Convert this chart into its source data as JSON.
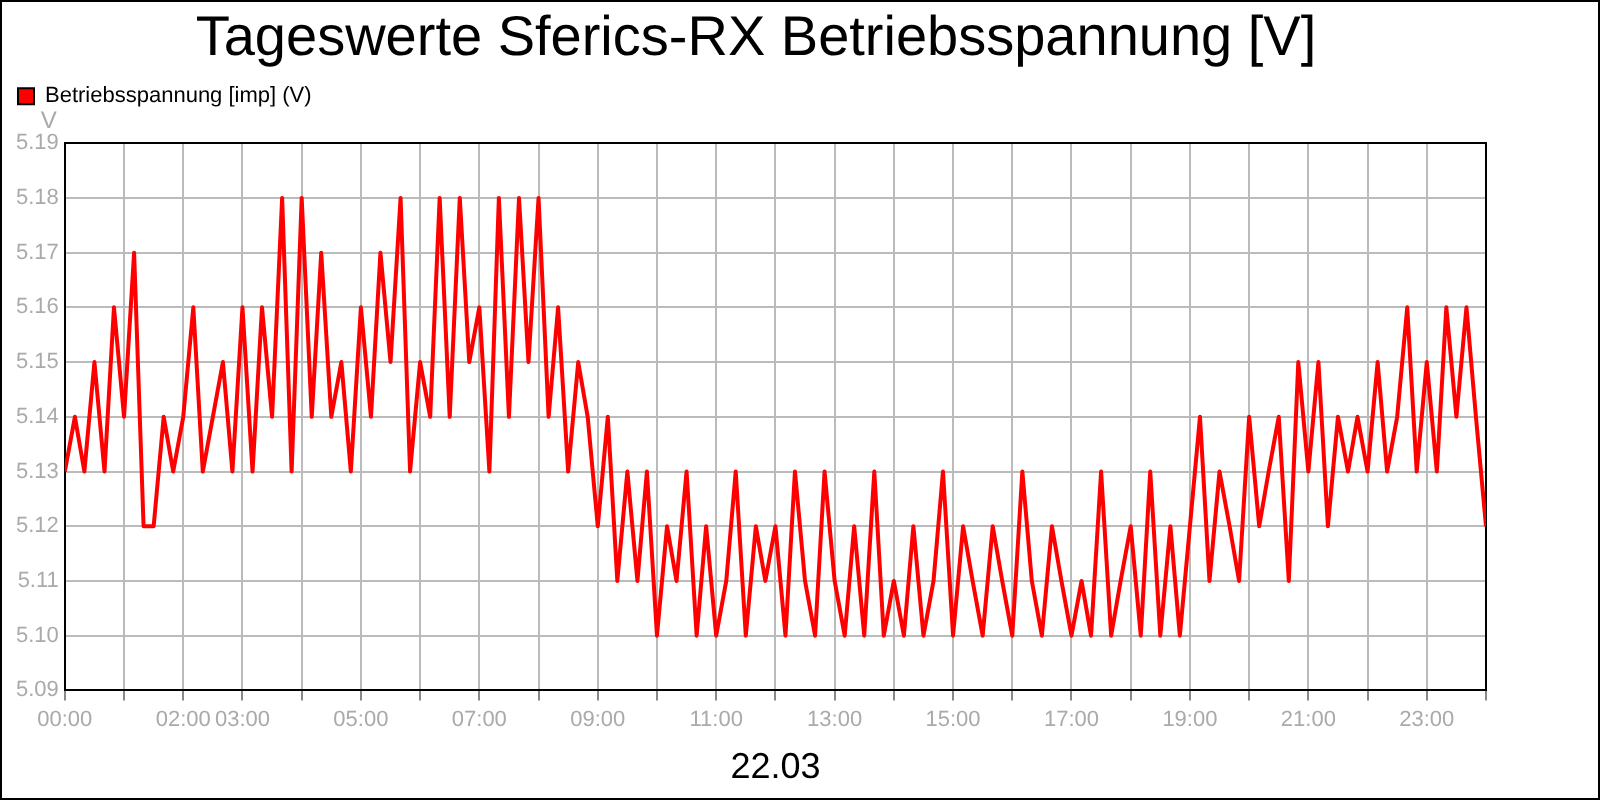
{
  "chart_data": {
    "type": "line",
    "title": "Tageswerte Sferics-RX Betriebsspannung [V]",
    "xlabel": "22.03",
    "ylabel": "V",
    "x": [
      0,
      0.17,
      0.33,
      0.5,
      0.67,
      0.83,
      1,
      1.17,
      1.33,
      1.5,
      1.67,
      1.83,
      2,
      2.17,
      2.33,
      2.5,
      2.67,
      2.83,
      3,
      3.17,
      3.33,
      3.5,
      3.67,
      3.83,
      4,
      4.17,
      4.33,
      4.5,
      4.67,
      4.83,
      5,
      5.17,
      5.33,
      5.5,
      5.67,
      5.83,
      6,
      6.17,
      6.33,
      6.5,
      6.67,
      6.83,
      7,
      7.17,
      7.33,
      7.5,
      7.67,
      7.83,
      8,
      8.17,
      8.33,
      8.5,
      8.67,
      8.83,
      9,
      9.17,
      9.33,
      9.5,
      9.67,
      9.83,
      10,
      10.17,
      10.33,
      10.5,
      10.67,
      10.83,
      11,
      11.17,
      11.33,
      11.5,
      11.67,
      11.83,
      12,
      12.17,
      12.33,
      12.5,
      12.67,
      12.83,
      13,
      13.17,
      13.33,
      13.5,
      13.67,
      13.83,
      14,
      14.17,
      14.33,
      14.5,
      14.67,
      14.83,
      15,
      15.17,
      15.33,
      15.5,
      15.67,
      15.83,
      16,
      16.17,
      16.33,
      16.5,
      16.67,
      16.83,
      17,
      17.17,
      17.33,
      17.5,
      17.67,
      17.83,
      18,
      18.17,
      18.33,
      18.5,
      18.67,
      18.83,
      19,
      19.17,
      19.33,
      19.5,
      19.67,
      19.83,
      20,
      20.17,
      20.33,
      20.5,
      20.67,
      20.83,
      21,
      21.17,
      21.33,
      21.5,
      21.67,
      21.83,
      22,
      22.17,
      22.33,
      22.5,
      22.67,
      22.83,
      23,
      23.17,
      23.33,
      23.5,
      23.67,
      23.83,
      24
    ],
    "series": [
      {
        "name": "Betriebsspannung [imp] (V)",
        "color": "#ff0000",
        "values": [
          5.13,
          5.14,
          5.13,
          5.15,
          5.13,
          5.16,
          5.14,
          5.17,
          5.12,
          5.12,
          5.14,
          5.13,
          5.14,
          5.16,
          5.13,
          5.14,
          5.15,
          5.13,
          5.16,
          5.13,
          5.16,
          5.14,
          5.18,
          5.13,
          5.18,
          5.14,
          5.17,
          5.14,
          5.15,
          5.13,
          5.16,
          5.14,
          5.17,
          5.15,
          5.18,
          5.13,
          5.15,
          5.14,
          5.18,
          5.14,
          5.18,
          5.15,
          5.16,
          5.13,
          5.18,
          5.14,
          5.18,
          5.15,
          5.18,
          5.14,
          5.16,
          5.13,
          5.15,
          5.14,
          5.12,
          5.14,
          5.11,
          5.13,
          5.11,
          5.13,
          5.1,
          5.12,
          5.11,
          5.13,
          5.1,
          5.12,
          5.1,
          5.11,
          5.13,
          5.1,
          5.12,
          5.11,
          5.12,
          5.1,
          5.13,
          5.11,
          5.1,
          5.13,
          5.11,
          5.1,
          5.12,
          5.1,
          5.13,
          5.1,
          5.11,
          5.1,
          5.12,
          5.1,
          5.11,
          5.13,
          5.1,
          5.12,
          5.11,
          5.1,
          5.12,
          5.11,
          5.1,
          5.13,
          5.11,
          5.1,
          5.12,
          5.11,
          5.1,
          5.11,
          5.1,
          5.13,
          5.1,
          5.11,
          5.12,
          5.1,
          5.13,
          5.1,
          5.12,
          5.1,
          5.12,
          5.14,
          5.11,
          5.13,
          5.12,
          5.11,
          5.14,
          5.12,
          5.13,
          5.14,
          5.11,
          5.15,
          5.13,
          5.15,
          5.12,
          5.14,
          5.13,
          5.14,
          5.13,
          5.15,
          5.13,
          5.14,
          5.16,
          5.13,
          5.15,
          5.13,
          5.16,
          5.14,
          5.16,
          5.14,
          5.12
        ]
      }
    ],
    "xlim": [
      0,
      24
    ],
    "xticks": [
      {
        "value": 0,
        "label": "00:00"
      },
      {
        "value": 1,
        "label": null
      },
      {
        "value": 2,
        "label": "02:00"
      },
      {
        "value": 3,
        "label": "03:00"
      },
      {
        "value": 4,
        "label": null
      },
      {
        "value": 5,
        "label": "05:00"
      },
      {
        "value": 6,
        "label": null
      },
      {
        "value": 7,
        "label": "07:00"
      },
      {
        "value": 8,
        "label": null
      },
      {
        "value": 9,
        "label": "09:00"
      },
      {
        "value": 10,
        "label": null
      },
      {
        "value": 11,
        "label": "11:00"
      },
      {
        "value": 12,
        "label": null
      },
      {
        "value": 13,
        "label": "13:00"
      },
      {
        "value": 14,
        "label": null
      },
      {
        "value": 15,
        "label": "15:00"
      },
      {
        "value": 16,
        "label": null
      },
      {
        "value": 17,
        "label": "17:00"
      },
      {
        "value": 18,
        "label": null
      },
      {
        "value": 19,
        "label": "19:00"
      },
      {
        "value": 20,
        "label": null
      },
      {
        "value": 21,
        "label": "21:00"
      },
      {
        "value": 22,
        "label": null
      },
      {
        "value": 23,
        "label": "23:00"
      },
      {
        "value": 24,
        "label": null
      }
    ],
    "ylim": [
      5.09,
      5.19
    ],
    "yticks": [
      5.09,
      {
        "value": 5.1,
        "label": "5.10"
      },
      5.11,
      5.12,
      5.13,
      5.14,
      5.15,
      5.16,
      5.17,
      5.18,
      5.19
    ],
    "grid": true,
    "legend": "top left",
    "marker": "none",
    "line_style": "solid"
  }
}
